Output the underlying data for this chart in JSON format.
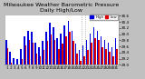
{
  "title": "Milwaukee Weather Barometric Pressure",
  "subtitle": "Daily High/Low",
  "legend_labels": [
    "High",
    "Low"
  ],
  "legend_colors": [
    "#0000dd",
    "#dd0000"
  ],
  "bar_color_high": "#0000dd",
  "bar_color_low": "#dd0000",
  "ylim": [
    29.0,
    30.65
  ],
  "yticks": [
    29.0,
    29.2,
    29.4,
    29.6,
    29.8,
    30.0,
    30.2,
    30.4,
    30.6
  ],
  "background_color": "#c0c0c0",
  "plot_bg": "#ffffff",
  "days": [
    1,
    2,
    3,
    4,
    5,
    6,
    7,
    8,
    9,
    10,
    11,
    12,
    13,
    14,
    15,
    16,
    17,
    18,
    19,
    20,
    21,
    22,
    23,
    24,
    25,
    26,
    27,
    28,
    29,
    30,
    31
  ],
  "highs": [
    29.82,
    29.42,
    29.22,
    29.18,
    29.52,
    29.92,
    30.12,
    30.08,
    29.72,
    29.58,
    29.78,
    30.08,
    30.38,
    30.22,
    29.88,
    30.02,
    30.28,
    30.42,
    30.12,
    29.68,
    29.48,
    29.62,
    29.82,
    30.02,
    30.22,
    30.12,
    29.92,
    29.82,
    29.72,
    29.58,
    29.88
  ],
  "lows": [
    29.55,
    29.08,
    29.02,
    29.01,
    29.18,
    29.62,
    29.82,
    29.72,
    29.38,
    29.28,
    29.48,
    29.78,
    29.98,
    29.82,
    29.52,
    29.68,
    29.92,
    30.08,
    29.78,
    29.38,
    29.12,
    29.28,
    29.48,
    29.72,
    29.88,
    29.82,
    29.58,
    29.52,
    29.42,
    29.28,
    29.52
  ],
  "vline_positions": [
    21.5,
    22.5
  ],
  "title_fontsize": 4.5,
  "tick_fontsize": 3.0,
  "bar_bottom": 29.0
}
